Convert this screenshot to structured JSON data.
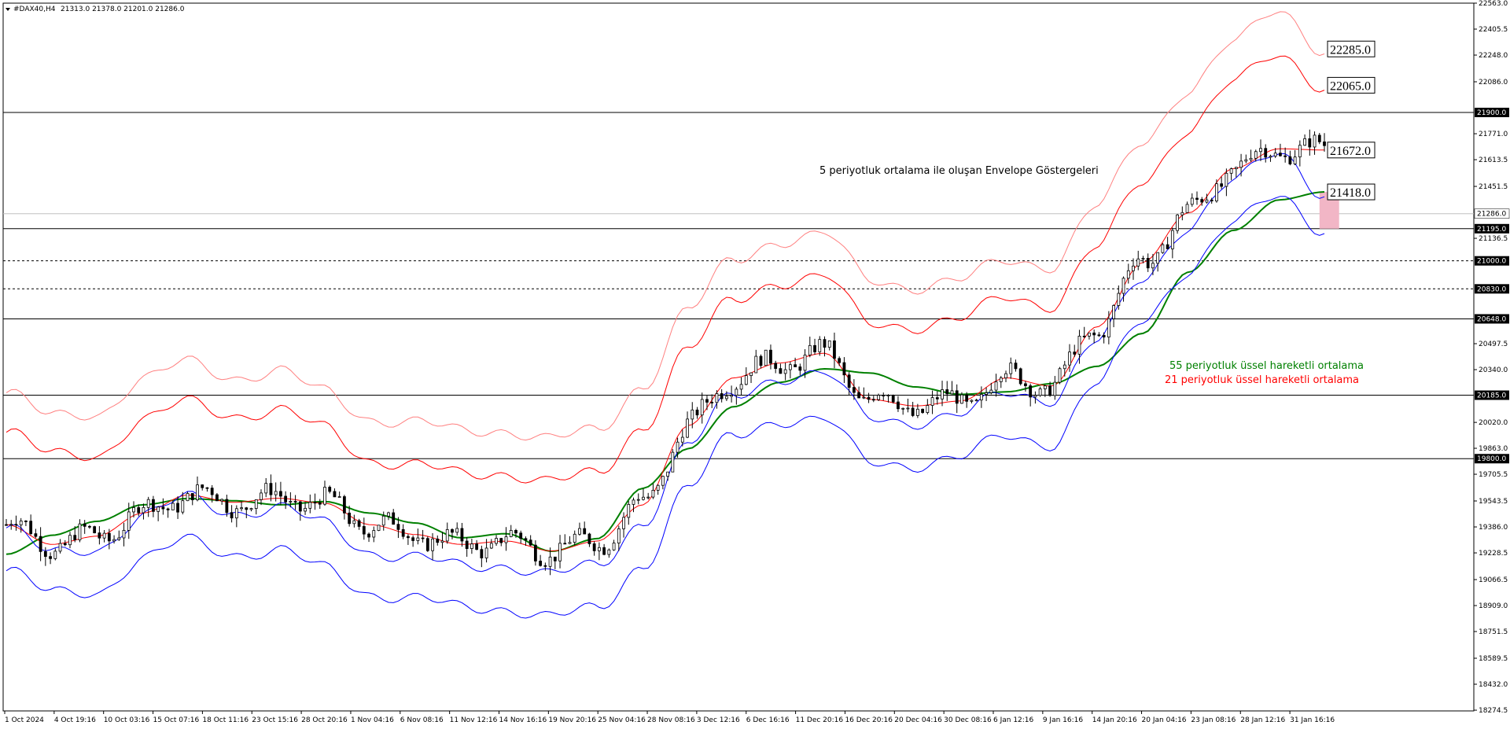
{
  "header": {
    "symbol": "#DAX40,H4",
    "ohlc": "21313.0 21378.0 21201.0 21286.0"
  },
  "chart_data": {
    "type": "line",
    "y_axis": {
      "min": 18270.0,
      "max": 22563.0,
      "tick_values": [
        22563.0,
        22405.5,
        22248.0,
        22086.0,
        21771.0,
        21613.5,
        21451.5,
        21136.5,
        20497.5,
        20340.0,
        20020.0,
        19863.0,
        19705.5,
        19543.5,
        19386.0,
        19228.5,
        19066.5,
        18909.0,
        18751.5,
        18589.5,
        18432.0,
        18274.5
      ],
      "tick_labels": [
        "22563.0",
        "22405.5",
        "22248.0",
        "22086.0",
        "21771.0",
        "21613.5",
        "21451.5",
        "21136.5",
        "20497.5",
        "20340.0",
        "20020.0",
        "19863.0",
        "19705.5",
        "19543.5",
        "19386.0",
        "19228.5",
        "19066.5",
        "18909.0",
        "18751.5",
        "18589.5",
        "18432.0",
        "18274.5"
      ],
      "position": "right"
    },
    "x_axis": {
      "labels": [
        "1 Oct 2024",
        "4 Oct 19:16",
        "10 Oct 03:16",
        "15 Oct 07:16",
        "18 Oct 11:16",
        "23 Oct 15:16",
        "28 Oct 20:16",
        "1 Nov 04:16",
        "6 Nov 08:16",
        "11 Nov 12:16",
        "14 Nov 16:16",
        "19 Nov 20:16",
        "25 Nov 04:16",
        "28 Nov 08:16",
        "3 Dec 12:16",
        "6 Dec 16:16",
        "11 Dec 20:16",
        "16 Dec 20:16",
        "20 Dec 04:16",
        "30 Dec 08:16",
        "6 Jan 12:16",
        "9 Jan 16:16",
        "14 Jan 20:16",
        "20 Jan 04:16",
        "23 Jan 08:16",
        "28 Jan 12:16",
        "31 Jan 16:16"
      ],
      "bar_count": 270
    },
    "horizontal_levels": [
      {
        "value": 21900.0,
        "label": "21900.0",
        "style": "solid"
      },
      {
        "value": 21195.0,
        "label": "21195.0",
        "style": "solid"
      },
      {
        "value": 21000.0,
        "label": "21000.0",
        "style": "dashed"
      },
      {
        "value": 20830.0,
        "label": "20830.0",
        "style": "dashed"
      },
      {
        "value": 20648.0,
        "label": "20648.0",
        "style": "solid"
      },
      {
        "value": 20185.0,
        "label": "20185.0",
        "style": "solid"
      },
      {
        "value": 19800.0,
        "label": "19800.0",
        "style": "solid"
      }
    ],
    "current_price": {
      "value": 21286.0,
      "label": "21286.0"
    },
    "callouts": [
      {
        "value": 22285.0,
        "label": "22285.0"
      },
      {
        "value": 22065.0,
        "label": "22065.0"
      },
      {
        "value": 21672.0,
        "label": "21672.0"
      },
      {
        "value": 21418.0,
        "label": "21418.0"
      }
    ],
    "highlight_zone": {
      "from_bar": 268,
      "to_bar": 272,
      "low": 21195.0,
      "high": 21418.0,
      "color": "#f2b6c6"
    },
    "series": [
      {
        "name": "55 periyotluk üssel hareketli ortalama",
        "color": "#008000",
        "kind": "ema",
        "values": [
          19220,
          19335,
          19420,
          19520,
          19558,
          19545,
          19520,
          19540,
          19470,
          19410,
          19320,
          19345,
          19238,
          19315,
          19620,
          19860,
          20115,
          20262,
          20345,
          20320,
          20235,
          20190,
          20205,
          20255,
          20360,
          20560,
          20930,
          21185,
          21370,
          21418
        ]
      },
      {
        "name": "21 periyotluk üssel hareketli ortalama",
        "color": "#ff0000",
        "kind": "ema",
        "values": [
          19400,
          19280,
          19330,
          19470,
          19580,
          19535,
          19560,
          19530,
          19400,
          19340,
          19280,
          19300,
          19240,
          19300,
          19520,
          20000,
          20290,
          20380,
          20440,
          20160,
          20120,
          20150,
          20290,
          20240,
          20600,
          20990,
          21290,
          21560,
          21680,
          21672
        ]
      },
      {
        "name": "envelope-upper-outer",
        "color": "#ff8080",
        "kind": "envelope",
        "values": [
          20200,
          20050,
          20080,
          20280,
          20380,
          20300,
          20330,
          20200,
          20050,
          20020,
          19960,
          19980,
          19920,
          19960,
          20250,
          20700,
          21000,
          21130,
          21160,
          20880,
          20850,
          20880,
          21000,
          20980,
          21330,
          21720,
          22050,
          22320,
          22520,
          22285
        ]
      },
      {
        "name": "envelope-upper-inner",
        "color": "#ff0000",
        "kind": "envelope",
        "values": [
          19960,
          19820,
          19830,
          20030,
          20140,
          20070,
          20090,
          19980,
          19800,
          19760,
          19700,
          19720,
          19660,
          19700,
          20000,
          20460,
          20760,
          20880,
          20900,
          20620,
          20610,
          20640,
          20780,
          20740,
          21080,
          21480,
          21810,
          22080,
          22250,
          22065
        ]
      },
      {
        "name": "envelope-lower-inner",
        "color": "#0000ff",
        "kind": "envelope",
        "values": [
          19380,
          19220,
          19260,
          19450,
          19560,
          19480,
          19500,
          19400,
          19240,
          19200,
          19140,
          19160,
          19100,
          19140,
          19420,
          19880,
          20180,
          20300,
          20310,
          20050,
          20030,
          20060,
          20200,
          20170,
          20510,
          20890,
          21220,
          21480,
          21660,
          21418
        ]
      },
      {
        "name": "envelope-lower-outer",
        "color": "#0000ff",
        "kind": "envelope",
        "values": [
          19120,
          18980,
          19000,
          19190,
          19300,
          19230,
          19240,
          19130,
          18990,
          18950,
          18890,
          18900,
          18840,
          18880,
          19160,
          19620,
          19940,
          20040,
          20030,
          19780,
          19770,
          19800,
          19940,
          19900,
          20250,
          20640,
          20950,
          21220,
          21400,
          21195
        ]
      }
    ],
    "annotations": [
      {
        "text": "5 periyotluk ortalama ile oluşan Envelope Göstergeleri",
        "color": "#000000"
      },
      {
        "text": "55 periyotluk üssel hareketli ortalama",
        "color": "#008000"
      },
      {
        "text": "21 periyotluk üssel hareketli ortalama",
        "color": "#ff0000"
      }
    ]
  }
}
